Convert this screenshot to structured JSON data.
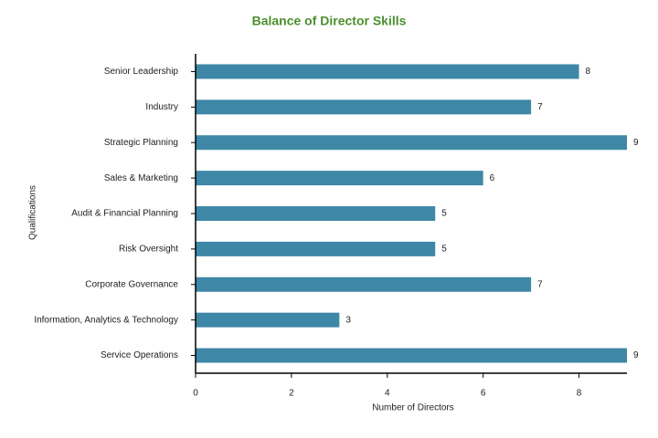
{
  "chart_data": {
    "type": "barh",
    "title": "Balance of Director Skills",
    "xlabel": "Number of Directors",
    "ylabel": "Qualifications",
    "categories": [
      "Senior Leadership",
      "Industry",
      "Strategic Planning",
      "Sales & Marketing",
      "Audit & Financial Planning",
      "Risk Oversight",
      "Corporate Governance",
      "Information, Analytics & Technology",
      "Service Operations"
    ],
    "values": [
      8,
      7,
      9,
      6,
      5,
      5,
      7,
      3,
      9
    ],
    "color": "#3f87a6",
    "xlim": [
      0,
      9
    ],
    "xticks": [
      0,
      2,
      4,
      6,
      8
    ],
    "grid": false
  }
}
